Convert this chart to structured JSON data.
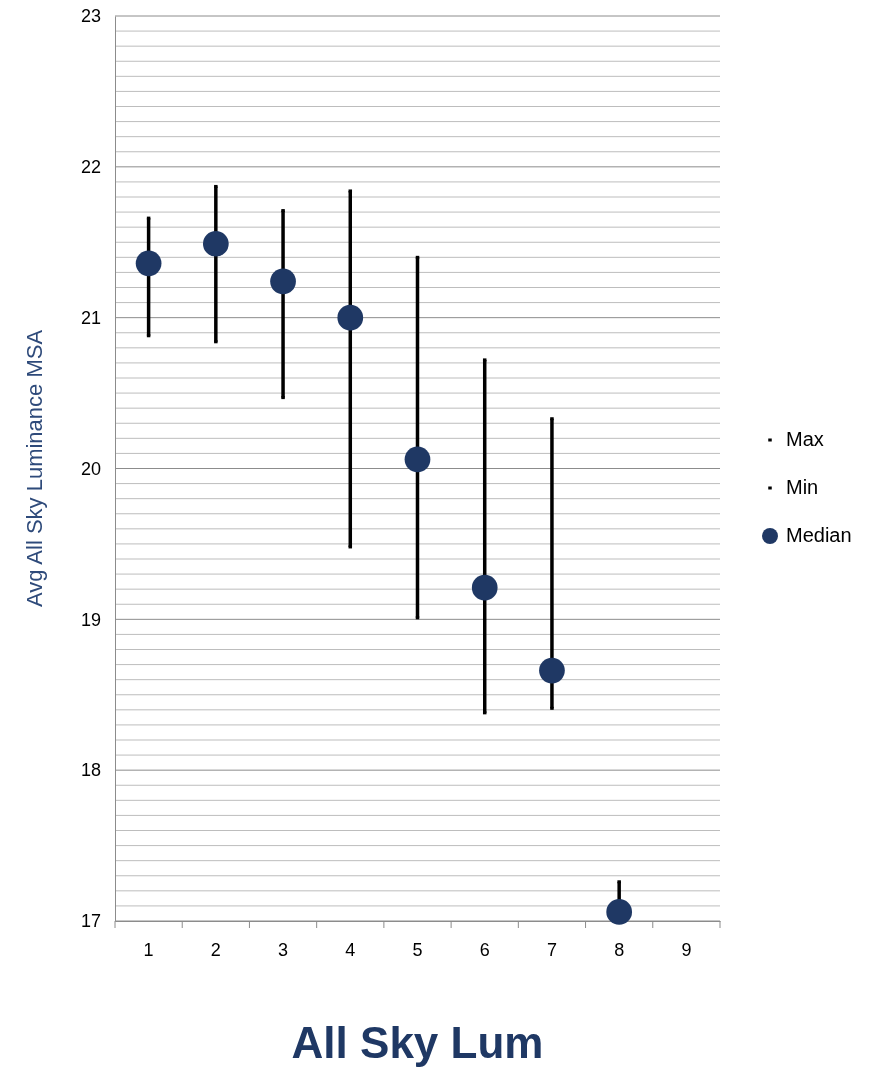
{
  "chart_data": {
    "type": "scatter",
    "xlabel": "All Sky Lum",
    "ylabel": "Avg All Sky Luminance MSA",
    "categories": [
      "1",
      "2",
      "3",
      "4",
      "5",
      "6",
      "7",
      "8",
      "9"
    ],
    "ylim": [
      17,
      23
    ],
    "yticks": [
      17,
      {
        "value": 17.1,
        "label": null
      },
      {
        "value": 17.2,
        "label": null
      },
      {
        "value": 17.3,
        "label": null
      },
      {
        "value": 17.4,
        "label": null
      },
      {
        "value": 17.5,
        "label": null
      },
      {
        "value": 17.6,
        "label": null
      },
      {
        "value": 17.7,
        "label": null
      },
      {
        "value": 17.8,
        "label": null
      },
      {
        "value": 17.9,
        "label": null
      },
      18,
      {
        "value": 18.1,
        "label": null
      },
      {
        "value": 18.2,
        "label": null
      },
      {
        "value": 18.3,
        "label": null
      },
      {
        "value": 18.4,
        "label": null
      },
      {
        "value": 18.5,
        "label": null
      },
      {
        "value": 18.6,
        "label": null
      },
      {
        "value": 18.7,
        "label": null
      },
      {
        "value": 18.8,
        "label": null
      },
      {
        "value": 18.9,
        "label": null
      },
      19,
      {
        "value": 19.1,
        "label": null
      },
      {
        "value": 19.2,
        "label": null
      },
      {
        "value": 19.3,
        "label": null
      },
      {
        "value": 19.4,
        "label": null
      },
      {
        "value": 19.5,
        "label": null
      },
      {
        "value": 19.6,
        "label": null
      },
      {
        "value": 19.7,
        "label": null
      },
      {
        "value": 19.8,
        "label": null
      },
      {
        "value": 19.9,
        "label": null
      },
      20,
      {
        "value": 20.1,
        "label": null
      },
      {
        "value": 20.2,
        "label": null
      },
      {
        "value": 20.3,
        "label": null
      },
      {
        "value": 20.4,
        "label": null
      },
      {
        "value": 20.5,
        "label": null
      },
      {
        "value": 20.6,
        "label": null
      },
      {
        "value": 20.7,
        "label": null
      },
      {
        "value": 20.8,
        "label": null
      },
      {
        "value": 20.9,
        "label": null
      },
      21,
      {
        "value": 21.1,
        "label": null
      },
      {
        "value": 21.2,
        "label": null
      },
      {
        "value": 21.3,
        "label": null
      },
      {
        "value": 21.4,
        "label": null
      },
      {
        "value": 21.5,
        "label": null
      },
      {
        "value": 21.6,
        "label": null
      },
      {
        "value": 21.7,
        "label": null
      },
      {
        "value": 21.8,
        "label": null
      },
      {
        "value": 21.9,
        "label": null
      },
      22,
      {
        "value": 22.1,
        "label": null
      },
      {
        "value": 22.2,
        "label": null
      },
      {
        "value": 22.3,
        "label": null
      },
      {
        "value": 22.4,
        "label": null
      },
      {
        "value": 22.5,
        "label": null
      },
      {
        "value": 22.6,
        "label": null
      },
      {
        "value": 22.7,
        "label": null
      },
      {
        "value": 22.8,
        "label": null
      },
      {
        "value": 22.9,
        "label": null
      },
      23
    ],
    "grid": "y",
    "legend": "right",
    "series": [
      {
        "name": "Max",
        "color": "#000000",
        "values": [
          21.66,
          21.87,
          21.71,
          21.84,
          21.4,
          20.72,
          20.33,
          17.26,
          null
        ]
      },
      {
        "name": "Min",
        "color": "#000000",
        "values": [
          20.88,
          20.84,
          20.47,
          19.48,
          19.01,
          18.38,
          18.41,
          null,
          null
        ]
      },
      {
        "name": "Median",
        "color": "#1f3864",
        "marker": "circle",
        "values": [
          21.36,
          21.49,
          21.24,
          21.0,
          20.06,
          19.21,
          18.66,
          17.06,
          null
        ]
      }
    ]
  }
}
